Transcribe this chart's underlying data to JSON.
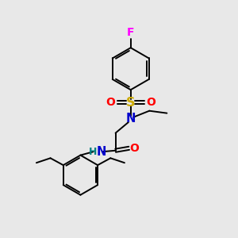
{
  "background_color": "#e8e8e8",
  "atom_colors": {
    "C": "#000000",
    "N": "#0000cc",
    "O": "#ff0000",
    "S": "#ccaa00",
    "F": "#ff00ff",
    "H": "#008080"
  },
  "bond_color": "#000000",
  "figsize": [
    3.0,
    3.0
  ],
  "dpi": 100,
  "xlim": [
    0,
    10
  ],
  "ylim": [
    0,
    10
  ]
}
